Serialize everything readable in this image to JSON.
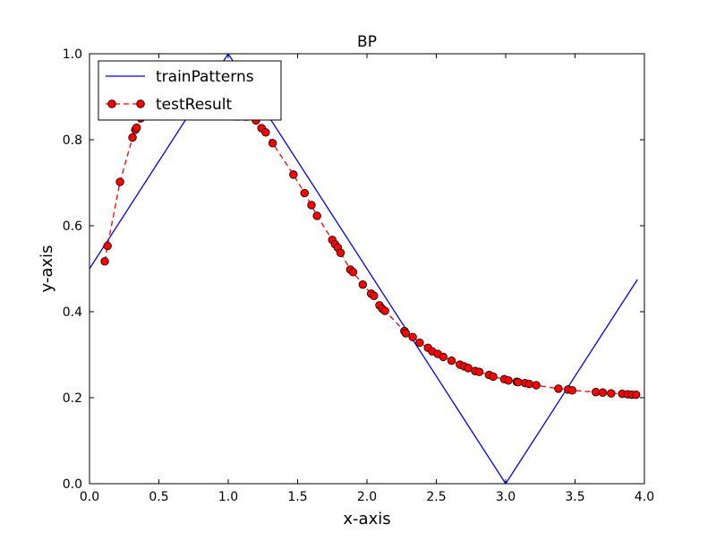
{
  "chart_data": {
    "type": "line",
    "title": "BP",
    "xlabel": "x-axis",
    "ylabel": "y-axis",
    "xlim": [
      0,
      4
    ],
    "ylim": [
      0,
      1
    ],
    "xticks": [
      "0.0",
      "0.5",
      "1.0",
      "1.5",
      "2.0",
      "2.5",
      "3.0",
      "3.5",
      "4.0"
    ],
    "yticks": [
      "0.0",
      "0.2",
      "0.4",
      "0.6",
      "0.8",
      "1.0"
    ],
    "grid": false,
    "legend_position": "top-left",
    "series": [
      {
        "name": "trainPatterns",
        "style": "solid line",
        "color": "#0000ff",
        "points": [
          [
            0,
            0.5
          ],
          [
            1.0,
            1.0
          ],
          [
            3.0,
            0.0
          ],
          [
            3.95,
            0.475
          ]
        ]
      },
      {
        "name": "testResult",
        "style": "dashed line with circle markers",
        "color": "#ff0000",
        "marker_fill": "#ff0000",
        "points": [
          [
            0.11,
            0.517
          ],
          [
            0.13,
            0.553
          ],
          [
            0.22,
            0.702
          ],
          [
            0.31,
            0.805
          ],
          [
            0.33,
            0.823
          ],
          [
            0.34,
            0.828
          ],
          [
            0.37,
            0.85
          ],
          [
            1.2,
            0.845
          ],
          [
            1.24,
            0.827
          ],
          [
            1.27,
            0.817
          ],
          [
            1.32,
            0.792
          ],
          [
            1.47,
            0.719
          ],
          [
            1.55,
            0.676
          ],
          [
            1.6,
            0.648
          ],
          [
            1.64,
            0.623
          ],
          [
            1.75,
            0.567
          ],
          [
            1.77,
            0.557
          ],
          [
            1.79,
            0.549
          ],
          [
            1.81,
            0.537
          ],
          [
            1.88,
            0.498
          ],
          [
            1.9,
            0.492
          ],
          [
            1.97,
            0.463
          ],
          [
            2.03,
            0.442
          ],
          [
            2.05,
            0.437
          ],
          [
            2.09,
            0.415
          ],
          [
            2.11,
            0.407
          ],
          [
            2.13,
            0.402
          ],
          [
            2.27,
            0.355
          ],
          [
            2.28,
            0.35
          ],
          [
            2.33,
            0.341
          ],
          [
            2.38,
            0.328
          ],
          [
            2.44,
            0.316
          ],
          [
            2.47,
            0.308
          ],
          [
            2.51,
            0.302
          ],
          [
            2.55,
            0.295
          ],
          [
            2.61,
            0.286
          ],
          [
            2.67,
            0.277
          ],
          [
            2.7,
            0.273
          ],
          [
            2.73,
            0.269
          ],
          [
            2.78,
            0.262
          ],
          [
            2.81,
            0.26
          ],
          [
            2.88,
            0.253
          ],
          [
            2.91,
            0.249
          ],
          [
            2.99,
            0.243
          ],
          [
            3.02,
            0.24
          ],
          [
            3.08,
            0.237
          ],
          [
            3.09,
            0.236
          ],
          [
            3.14,
            0.234
          ],
          [
            3.17,
            0.232
          ],
          [
            3.22,
            0.229
          ],
          [
            3.38,
            0.221
          ],
          [
            3.45,
            0.219
          ],
          [
            3.48,
            0.217
          ],
          [
            3.65,
            0.213
          ],
          [
            3.7,
            0.212
          ],
          [
            3.76,
            0.21
          ],
          [
            3.84,
            0.209
          ],
          [
            3.88,
            0.208
          ],
          [
            3.91,
            0.207
          ],
          [
            3.94,
            0.207
          ]
        ]
      }
    ]
  }
}
